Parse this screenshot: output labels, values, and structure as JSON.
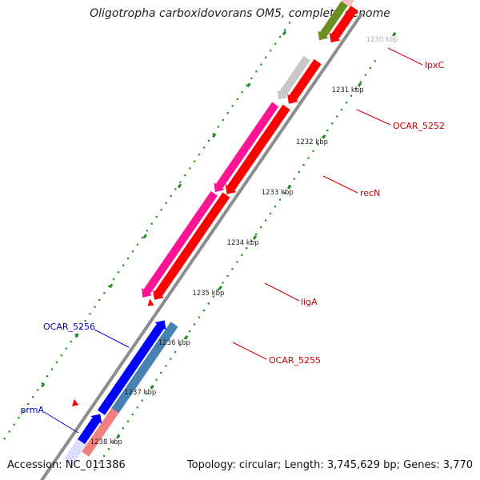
{
  "title": "Oligotropha carboxidovorans OM5, complete genome",
  "footer": {
    "accession": "Accession: NC_011386",
    "summary": "Topology: circular; Length: 3,745,629 bp; Genes: 3,770"
  },
  "ticks": [
    {
      "label": "1230 kbp",
      "faded": true
    },
    {
      "label": "1231 kbp"
    },
    {
      "label": "1232 kbp"
    },
    {
      "label": "1233 kbp"
    },
    {
      "label": "1234 kbp"
    },
    {
      "label": "1235 kbp"
    },
    {
      "label": "1236 kbp"
    },
    {
      "label": "1237 kbp"
    },
    {
      "label": "1238 kbp"
    }
  ],
  "genes": [
    {
      "name": "lpxC",
      "strand": "forward",
      "color": "#6b8e23"
    },
    {
      "name": "OCAR_5252",
      "strand": "forward",
      "color": "#c8c8c8"
    },
    {
      "name": "recN",
      "strand": "forward",
      "color": "#ff1493"
    },
    {
      "name": "ligA",
      "strand": "forward",
      "color": "#ff0000"
    },
    {
      "name": "OCAR_5255",
      "strand": "forward",
      "color": "#ff1493"
    },
    {
      "name": "OCAR_5256",
      "strand": "reverse",
      "color": "#4682b4"
    },
    {
      "name": "prmA",
      "strand": "reverse",
      "color": "#f08080"
    }
  ],
  "colors": {
    "backbone": "#8c8c8c",
    "tick": "#228b22",
    "forward_label": "#cc0000",
    "reverse_label": "#0000cc",
    "cds_forward": "#ff0000",
    "cds_reverse": "#0000ff"
  }
}
